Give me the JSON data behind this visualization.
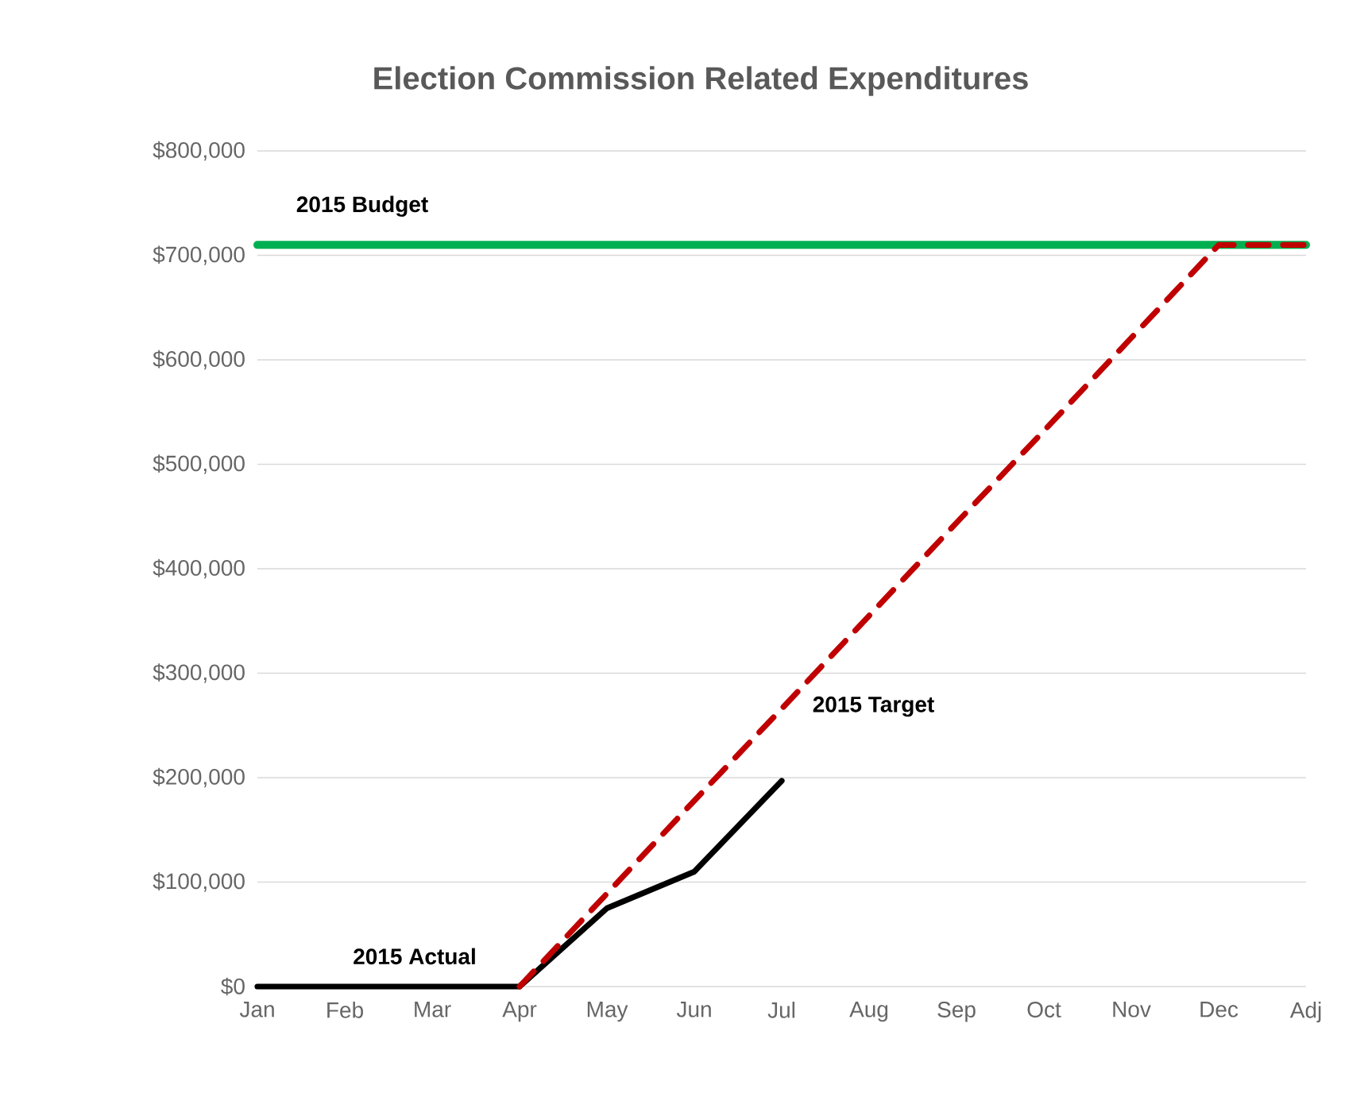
{
  "chart_data": {
    "type": "line",
    "title": "Election Commission Related Expenditures",
    "categories": [
      "Jan",
      "Feb",
      "Mar",
      "Apr",
      "May",
      "Jun",
      "Jul",
      "Aug",
      "Sep",
      "Oct",
      "Nov",
      "Dec",
      "Adj"
    ],
    "series": [
      {
        "name": "2015 Budget",
        "color": "#00b050",
        "line_style": "solid",
        "values": [
          710000,
          710000,
          710000,
          710000,
          710000,
          710000,
          710000,
          710000,
          710000,
          710000,
          710000,
          710000,
          710000
        ]
      },
      {
        "name": "2015 Actual",
        "color": "#000000",
        "line_style": "solid",
        "values": [
          0,
          0,
          0,
          0,
          75000,
          110000,
          197000,
          null,
          null,
          null,
          null,
          null,
          null
        ]
      },
      {
        "name": "2015 Target",
        "color": "#c00000",
        "line_style": "dashed",
        "values": [
          null,
          null,
          null,
          0,
          89000,
          178000,
          266000,
          355000,
          444000,
          532000,
          621000,
          710000,
          710000
        ]
      }
    ],
    "ylim": [
      0,
      800000
    ],
    "yticks": [
      {
        "value": 0,
        "label": "$0"
      },
      {
        "value": 100000,
        "label": "$100,000"
      },
      {
        "value": 200000,
        "label": "$200,000"
      },
      {
        "value": 300000,
        "label": "$300,000"
      },
      {
        "value": 400000,
        "label": "$400,000"
      },
      {
        "value": 500000,
        "label": "$500,000"
      },
      {
        "value": 600000,
        "label": "$600,000"
      },
      {
        "value": 700000,
        "label": "$700,000"
      },
      {
        "value": 800000,
        "label": "$800,000"
      }
    ],
    "grid": "y"
  }
}
